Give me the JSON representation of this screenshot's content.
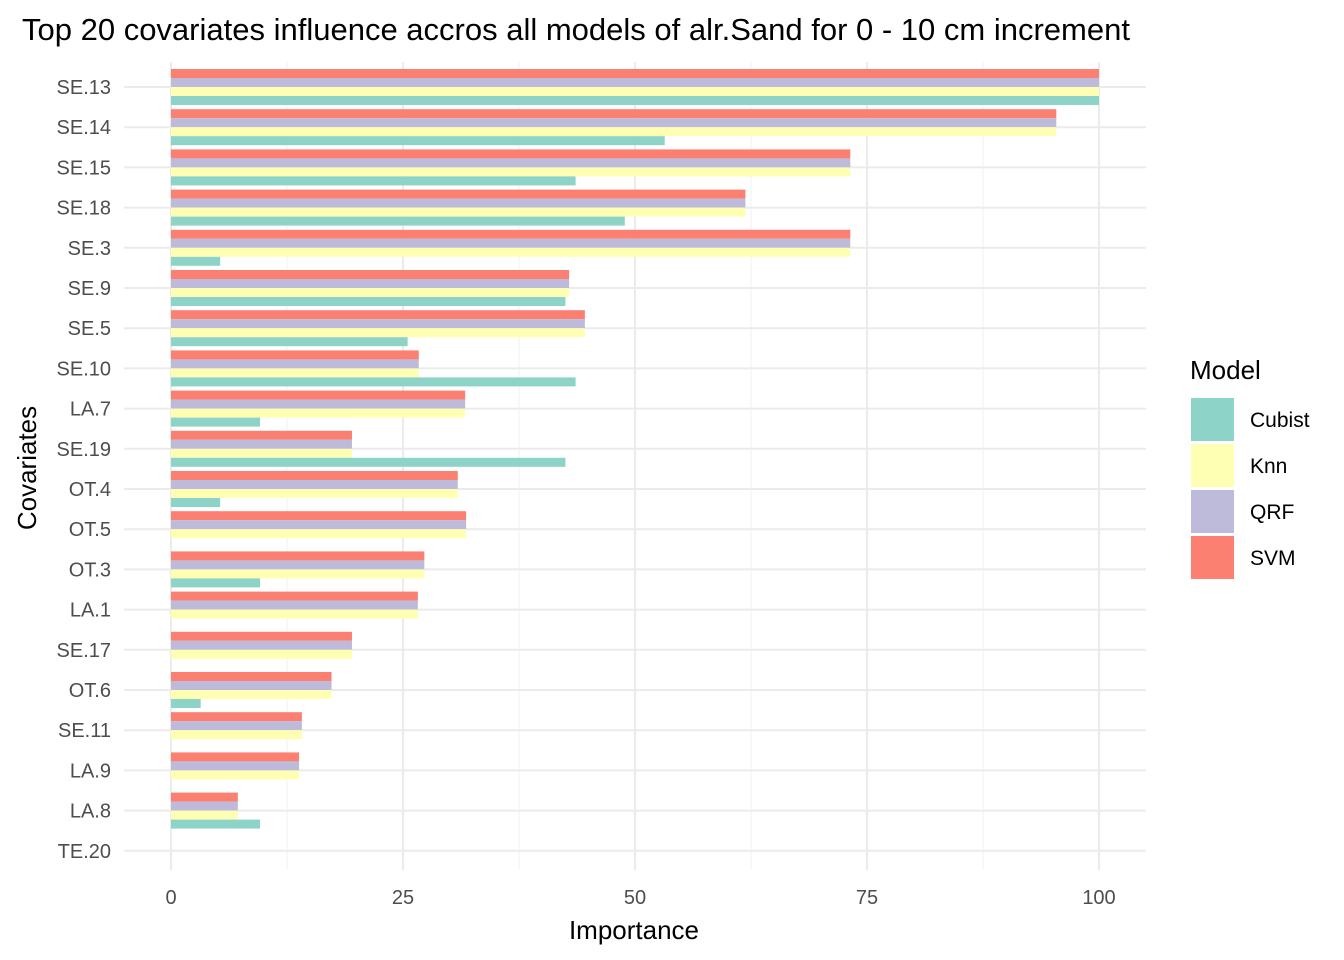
{
  "chart_data": {
    "type": "bar",
    "orientation": "horizontal",
    "title": "Top 20 covariates influence accros all models of alr.Sand for 0 - 10 cm increment",
    "xlabel": "Importance",
    "ylabel": "Covariates",
    "xlim": [
      0,
      100
    ],
    "x_ticks": [
      "0",
      "25",
      "50",
      "75",
      "100"
    ],
    "grid": true,
    "legend_title": "Model",
    "legend_position": "right",
    "categories": [
      "SE.13",
      "SE.14",
      "SE.15",
      "SE.18",
      "SE.3",
      "SE.9",
      "SE.5",
      "SE.10",
      "LA.7",
      "SE.19",
      "OT.4",
      "OT.5",
      "OT.3",
      "LA.1",
      "SE.17",
      "OT.6",
      "SE.11",
      "LA.9",
      "LA.8",
      "TE.20"
    ],
    "series": [
      {
        "name": "Cubist",
        "color": "#8DD3C7",
        "values": [
          100,
          53.2,
          43.6,
          48.9,
          5.3,
          42.5,
          25.5,
          43.6,
          9.6,
          42.5,
          5.3,
          0,
          9.6,
          0,
          0,
          3.2,
          0,
          0,
          9.6,
          0
        ]
      },
      {
        "name": "Knn",
        "color": "#FFFFB3",
        "values": [
          100,
          95.4,
          73.2,
          61.9,
          73.2,
          42.9,
          44.6,
          26.7,
          31.7,
          19.5,
          30.9,
          31.8,
          27.3,
          26.6,
          19.5,
          17.3,
          14.1,
          13.8,
          7.2,
          0
        ]
      },
      {
        "name": "QRF",
        "color": "#BEBADA",
        "values": [
          100,
          95.4,
          73.2,
          61.9,
          73.2,
          42.9,
          44.6,
          26.7,
          31.7,
          19.5,
          30.9,
          31.8,
          27.3,
          26.6,
          19.5,
          17.3,
          14.1,
          13.8,
          7.2,
          0
        ]
      },
      {
        "name": "SVM",
        "color": "#FB8072",
        "values": [
          100,
          95.4,
          73.2,
          61.9,
          73.2,
          42.9,
          44.6,
          26.7,
          31.7,
          19.5,
          30.9,
          31.8,
          27.3,
          26.6,
          19.5,
          17.3,
          14.1,
          13.8,
          7.2,
          0
        ]
      }
    ]
  }
}
